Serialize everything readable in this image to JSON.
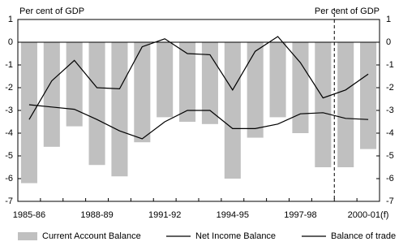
{
  "chart_data": {
    "type": "bar-line",
    "y_axis_label": "Per cent of GDP",
    "y2_axis_label": "Per cent of GDP",
    "categories": [
      "1985-86",
      null,
      null,
      "1988-89",
      null,
      null,
      "1991-92",
      null,
      null,
      "1994-95",
      null,
      null,
      "1997-98",
      null,
      null,
      "2000-01(f)"
    ],
    "series": [
      {
        "name": "Current Account Balance",
        "type": "bar",
        "color": "#c0c0c0",
        "values": [
          -6.2,
          -4.6,
          -3.7,
          -5.4,
          -5.9,
          -4.4,
          -3.3,
          -3.5,
          -3.6,
          -6.0,
          -4.2,
          -3.3,
          -4.0,
          -5.5,
          -5.5,
          -4.7
        ]
      },
      {
        "name": "Net Income Balance",
        "type": "line",
        "color": "#000000",
        "values": [
          -2.75,
          -2.85,
          -2.95,
          -3.4,
          -3.9,
          -4.25,
          -3.5,
          -3.0,
          -3.0,
          -3.8,
          -3.8,
          -3.6,
          -3.15,
          -3.1,
          -3.35,
          -3.4
        ]
      },
      {
        "name": "Balance of trade",
        "type": "line",
        "color": "#000000",
        "values": [
          -3.4,
          -1.7,
          -0.8,
          -2.0,
          -2.05,
          -0.2,
          0.15,
          -0.5,
          -0.55,
          -2.1,
          -0.4,
          0.25,
          -0.9,
          -2.45,
          -2.1,
          -1.4
        ]
      }
    ],
    "ylim": [
      -7,
      1
    ],
    "yticks": [
      -7,
      -6,
      -5,
      -4,
      -3,
      -2,
      -1,
      0,
      1
    ],
    "y2lim": [
      -7,
      1
    ],
    "y2ticks": [
      -7,
      -6,
      -5,
      -4,
      -3,
      -2,
      -1,
      0,
      1
    ]
  }
}
